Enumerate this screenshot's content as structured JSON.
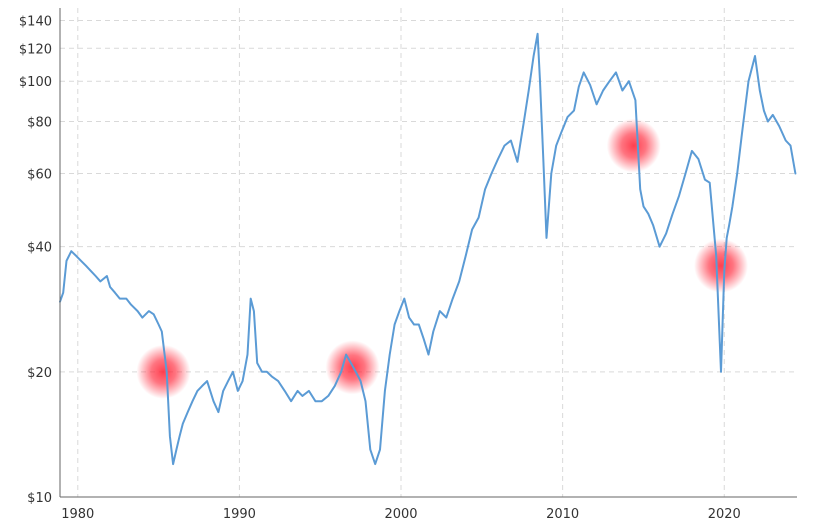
{
  "chart_data": {
    "type": "line",
    "title": "",
    "xlabel": "",
    "ylabel": "",
    "y_scale": "log",
    "ylim": [
      10,
      150
    ],
    "xlim": [
      1978.9,
      2024.5
    ],
    "grid": true,
    "legend": "none",
    "colors": {
      "line": "#5b9bd5",
      "highlight": "#ff2a3c"
    },
    "x_ticks": [
      1980,
      1990,
      2000,
      2010,
      2020
    ],
    "x_tick_labels": [
      "1980",
      "1990",
      "2000",
      "2010",
      "2020"
    ],
    "y_ticks": [
      10,
      20,
      40,
      60,
      80,
      100,
      120,
      140
    ],
    "y_tick_labels": [
      "$10",
      "$20",
      "$40",
      "$60",
      "$80",
      "$100",
      "$120",
      "$140"
    ],
    "series": [
      {
        "x": [
          1978.9,
          1979.1,
          1979.3,
          1979.6,
          1979.9,
          1980.2,
          1980.5,
          1980.8,
          1981.1,
          1981.4,
          1981.8,
          1982.0,
          1982.3,
          1982.6,
          1983.0,
          1983.3,
          1983.7,
          1984.0,
          1984.4,
          1984.7,
          1985.0,
          1985.2,
          1985.5,
          1985.7,
          1985.9,
          1986.1,
          1986.3,
          1986.5,
          1986.8,
          1987.1,
          1987.4,
          1987.7,
          1988.0,
          1988.4,
          1988.7,
          1989.0,
          1989.3,
          1989.6,
          1989.9,
          1990.2,
          1990.5,
          1990.7,
          1990.9,
          1991.1,
          1991.4,
          1991.7,
          1992.0,
          1992.4,
          1992.8,
          1993.2,
          1993.6,
          1993.9,
          1994.3,
          1994.7,
          1995.1,
          1995.5,
          1995.9,
          1996.3,
          1996.6,
          1996.9,
          1997.2,
          1997.5,
          1997.8,
          1998.1,
          1998.4,
          1998.7,
          1999.0,
          1999.3,
          1999.6,
          1999.9,
          2000.2,
          2000.5,
          2000.8,
          2001.1,
          2001.4,
          2001.7,
          2002.0,
          2002.4,
          2002.8,
          2003.2,
          2003.6,
          2004.0,
          2004.4,
          2004.8,
          2005.2,
          2005.6,
          2006.0,
          2006.4,
          2006.8,
          2007.2,
          2007.6,
          2007.9,
          2008.2,
          2008.45,
          2008.6,
          2008.8,
          2009.0,
          2009.3,
          2009.6,
          2009.9,
          2010.3,
          2010.7,
          2011.0,
          2011.3,
          2011.7,
          2012.1,
          2012.5,
          2012.9,
          2013.3,
          2013.7,
          2014.1,
          2014.5,
          2014.8,
          2015.0,
          2015.3,
          2015.6,
          2016.0,
          2016.4,
          2016.8,
          2017.2,
          2017.6,
          2018.0,
          2018.4,
          2018.8,
          2019.1,
          2019.5,
          2019.8,
          2020.0,
          2020.15,
          2020.3,
          2020.5,
          2020.8,
          2021.1,
          2021.5,
          2021.9,
          2022.2,
          2022.45,
          2022.7,
          2023.0,
          2023.4,
          2023.8,
          2024.1,
          2024.4
        ],
        "values": [
          29.5,
          31,
          37,
          39,
          38,
          37,
          36,
          35,
          34,
          33,
          34,
          32,
          31,
          30,
          30,
          29,
          28,
          27,
          28,
          27.5,
          26,
          25,
          20,
          14,
          12,
          13,
          14,
          15,
          16,
          17,
          18,
          18.5,
          19,
          17,
          16,
          18,
          19,
          20,
          18,
          19,
          22,
          30,
          28,
          21,
          20,
          20,
          19.5,
          19,
          18,
          17,
          18,
          17.5,
          18,
          17,
          17,
          17.5,
          18.5,
          20,
          22,
          21,
          20,
          19,
          17,
          13,
          12,
          13,
          18,
          22,
          26,
          28,
          30,
          27,
          26,
          26,
          24,
          22,
          25,
          28,
          27,
          30,
          33,
          38,
          44,
          47,
          55,
          60,
          65,
          70,
          72,
          64,
          80,
          95,
          115,
          130,
          100,
          65,
          42,
          60,
          70,
          75,
          82,
          85,
          97,
          105,
          98,
          88,
          95,
          100,
          105,
          95,
          100,
          90,
          55,
          50,
          48,
          45,
          40,
          43,
          48,
          53,
          60,
          68,
          65,
          58,
          57,
          38,
          20,
          35,
          42,
          45,
          50,
          60,
          75,
          100,
          115,
          95,
          85,
          80,
          83,
          78,
          72,
          70,
          60
        ],
        "name": ""
      }
    ],
    "highlights": [
      {
        "x": 1985.3,
        "y": 20
      },
      {
        "x": 1997.0,
        "y": 20.5
      },
      {
        "x": 2014.4,
        "y": 70
      },
      {
        "x": 2019.8,
        "y": 36
      }
    ]
  }
}
